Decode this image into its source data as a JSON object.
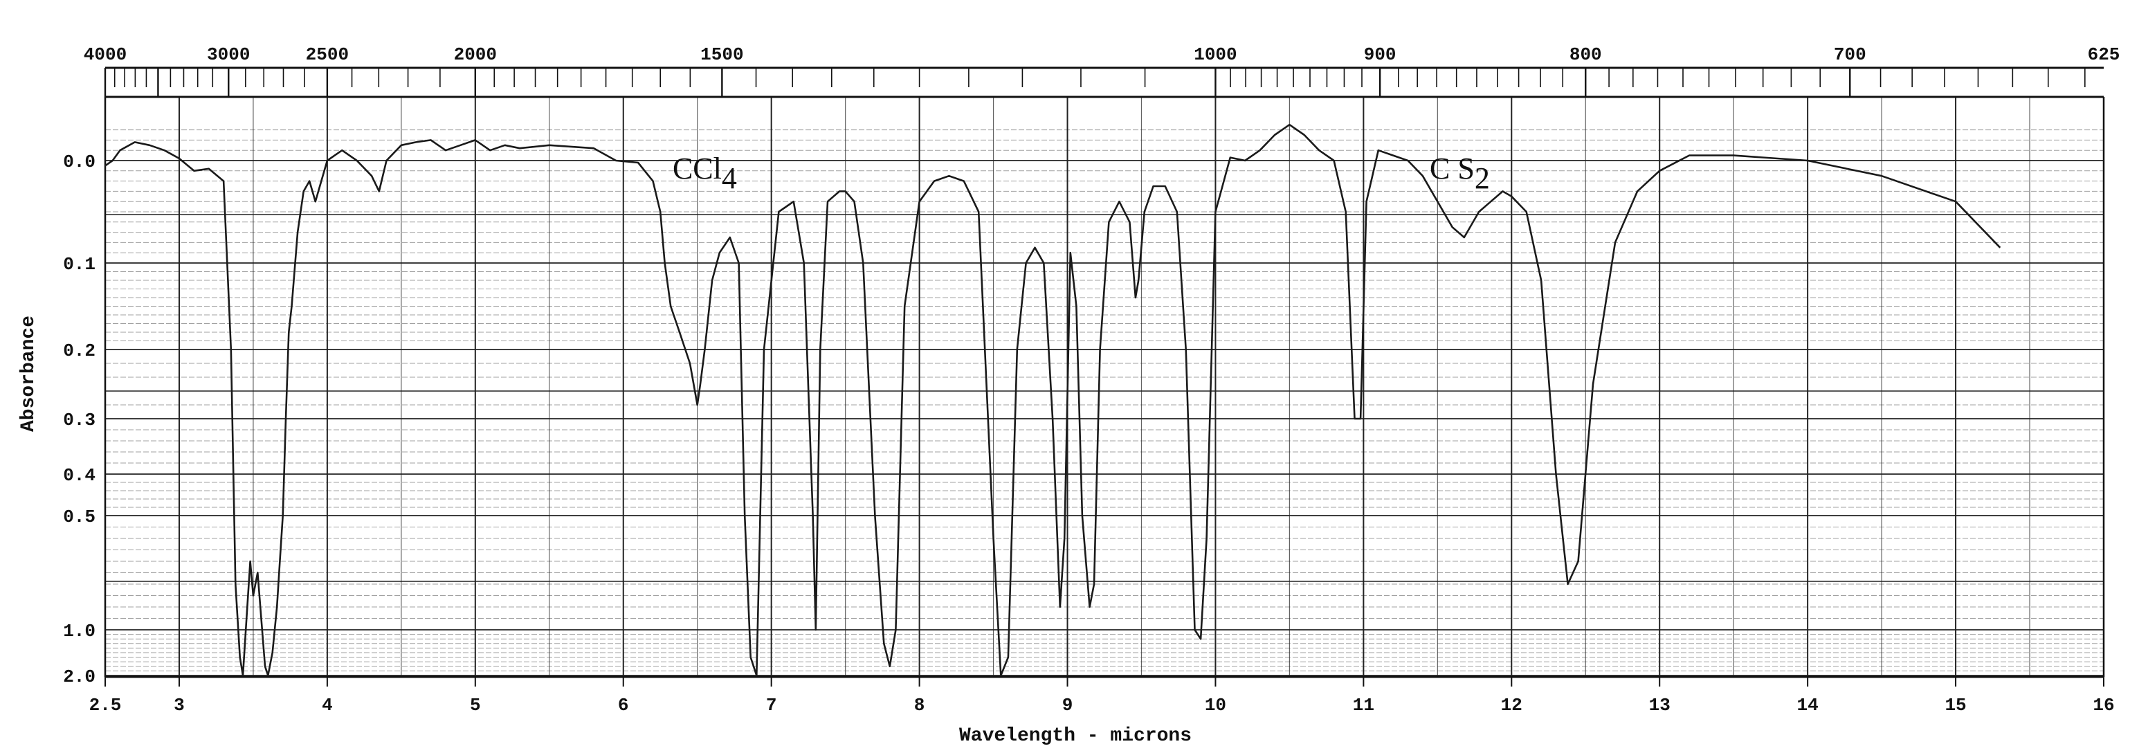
{
  "chart_data": {
    "type": "line",
    "xlabel": "Wavelength - microns",
    "ylabel": "Absorbance",
    "x_unit": "microns",
    "xlim": [
      2.5,
      16
    ],
    "ylim_display": [
      "0.0",
      "2.0"
    ],
    "x_ticks_bottom": [
      {
        "value": 2.5,
        "label": "2.5"
      },
      {
        "value": 3,
        "label": "3"
      },
      {
        "value": 4,
        "label": "4"
      },
      {
        "value": 5,
        "label": "5"
      },
      {
        "value": 6,
        "label": "6"
      },
      {
        "value": 7,
        "label": "7"
      },
      {
        "value": 8,
        "label": "8"
      },
      {
        "value": 9,
        "label": "9"
      },
      {
        "value": 10,
        "label": "10"
      },
      {
        "value": 11,
        "label": "11"
      },
      {
        "value": 12,
        "label": "12"
      },
      {
        "value": 13,
        "label": "13"
      },
      {
        "value": 14,
        "label": "14"
      },
      {
        "value": 15,
        "label": "15"
      },
      {
        "value": 16,
        "label": "16"
      }
    ],
    "x_ticks_top": [
      {
        "wavenumber": 4000,
        "label": "4000"
      },
      {
        "wavenumber": 3000,
        "label": "3000"
      },
      {
        "wavenumber": 2500,
        "label": "2500"
      },
      {
        "wavenumber": 2000,
        "label": "2000"
      },
      {
        "wavenumber": 1500,
        "label": "1500"
      },
      {
        "wavenumber": 1000,
        "label": "1000"
      },
      {
        "wavenumber": 900,
        "label": "900"
      },
      {
        "wavenumber": 800,
        "label": "800"
      },
      {
        "wavenumber": 700,
        "label": "700"
      },
      {
        "wavenumber": 625,
        "label": "625"
      }
    ],
    "y_ticks": [
      {
        "value": 0.0,
        "label": "0.0"
      },
      {
        "value": 0.1,
        "label": "0.1"
      },
      {
        "value": 0.2,
        "label": "0.2"
      },
      {
        "value": 0.3,
        "label": "0.3"
      },
      {
        "value": 0.4,
        "label": "0.4"
      },
      {
        "value": 0.5,
        "label": "0.5"
      },
      {
        "value": 1.0,
        "label": "1.0"
      },
      {
        "value": 2.0,
        "label": "2.0"
      }
    ],
    "annotations": [
      {
        "text": "CCl",
        "subscript": "4",
        "x": 6.55
      },
      {
        "text": "C S",
        "subscript": "2",
        "x": 11.65
      }
    ],
    "grid": true,
    "series": [
      {
        "x": [
          2.5,
          2.55,
          2.6,
          2.7,
          2.8,
          2.9,
          3.0,
          3.1,
          3.2,
          3.3,
          3.35,
          3.38,
          3.41,
          3.43,
          3.45,
          3.48,
          3.5,
          3.53,
          3.56,
          3.58,
          3.6,
          3.63,
          3.66,
          3.68,
          3.7,
          3.72,
          3.74,
          3.76,
          3.8,
          3.84,
          3.88,
          3.92,
          3.96,
          4.0,
          4.05,
          4.1,
          4.2,
          4.3,
          4.35,
          4.4,
          4.5,
          4.6,
          4.7,
          4.8,
          4.9,
          5.0,
          5.1,
          5.2,
          5.3,
          5.5,
          5.8,
          5.95,
          6.1,
          6.2,
          6.25,
          6.28,
          6.32,
          6.38,
          6.45,
          6.5,
          6.52,
          6.55,
          6.6,
          6.65,
          6.72,
          6.78,
          6.82,
          6.86,
          6.9,
          6.95,
          7.05,
          7.15,
          7.22,
          7.28,
          7.3,
          7.33,
          7.38,
          7.46,
          7.5,
          7.56,
          7.62,
          7.7,
          7.76,
          7.8,
          7.84,
          7.9,
          8.0,
          8.1,
          8.2,
          8.3,
          8.4,
          8.5,
          8.55,
          8.6,
          8.66,
          8.72,
          8.78,
          8.84,
          8.9,
          8.95,
          8.98,
          9.02,
          9.06,
          9.1,
          9.15,
          9.18,
          9.22,
          9.28,
          9.35,
          9.42,
          9.46,
          9.48,
          9.52,
          9.58,
          9.66,
          9.74,
          9.8,
          9.86,
          9.9,
          9.94,
          10.0,
          10.1,
          10.2,
          10.3,
          10.4,
          10.5,
          10.6,
          10.7,
          10.8,
          10.88,
          10.94,
          10.98,
          11.02,
          11.1,
          11.2,
          11.3,
          11.4,
          11.5,
          11.6,
          11.68,
          11.78,
          11.86,
          11.94,
          12.0,
          12.1,
          12.2,
          12.3,
          12.38,
          12.45,
          12.55,
          12.7,
          12.85,
          13.0,
          13.2,
          13.5,
          14.0,
          14.5,
          15.0,
          15.3
        ],
        "y": [
          0.005,
          0.0,
          -0.01,
          -0.018,
          -0.015,
          -0.01,
          -0.002,
          0.01,
          0.008,
          0.02,
          0.2,
          0.8,
          1.6,
          2.0,
          1.0,
          0.7,
          0.85,
          0.75,
          1.0,
          1.8,
          2.0,
          1.5,
          0.9,
          0.7,
          0.5,
          0.3,
          0.18,
          0.15,
          0.07,
          0.03,
          0.02,
          0.04,
          0.02,
          0.0,
          -0.005,
          -0.01,
          0.0,
          0.015,
          0.03,
          0.0,
          -0.015,
          -0.018,
          -0.02,
          -0.01,
          -0.015,
          -0.02,
          -0.01,
          -0.015,
          -0.012,
          -0.015,
          -0.012,
          0.0,
          0.002,
          0.02,
          0.05,
          0.1,
          0.15,
          0.18,
          0.22,
          0.28,
          0.25,
          0.2,
          0.12,
          0.09,
          0.075,
          0.1,
          0.5,
          1.6,
          2.0,
          0.2,
          0.05,
          0.04,
          0.1,
          0.5,
          1.0,
          0.2,
          0.04,
          0.03,
          0.03,
          0.04,
          0.1,
          0.5,
          1.3,
          1.8,
          1.0,
          0.15,
          0.04,
          0.02,
          0.015,
          0.02,
          0.05,
          0.6,
          2.0,
          1.6,
          0.2,
          0.1,
          0.085,
          0.1,
          0.3,
          0.9,
          0.6,
          0.09,
          0.15,
          0.5,
          0.9,
          0.8,
          0.2,
          0.06,
          0.04,
          0.06,
          0.14,
          0.12,
          0.05,
          0.025,
          0.025,
          0.05,
          0.2,
          1.0,
          1.2,
          0.6,
          0.05,
          -0.003,
          0.0,
          -0.01,
          -0.025,
          -0.035,
          -0.025,
          -0.01,
          0.0,
          0.05,
          0.3,
          0.3,
          0.04,
          -0.01,
          -0.005,
          0.0,
          0.015,
          0.04,
          0.065,
          0.075,
          0.05,
          0.04,
          0.03,
          0.035,
          0.05,
          0.12,
          0.4,
          0.8,
          0.7,
          0.25,
          0.08,
          0.03,
          0.01,
          -0.005,
          -0.005,
          0.0,
          0.015,
          0.04,
          0.085
        ]
      }
    ]
  }
}
